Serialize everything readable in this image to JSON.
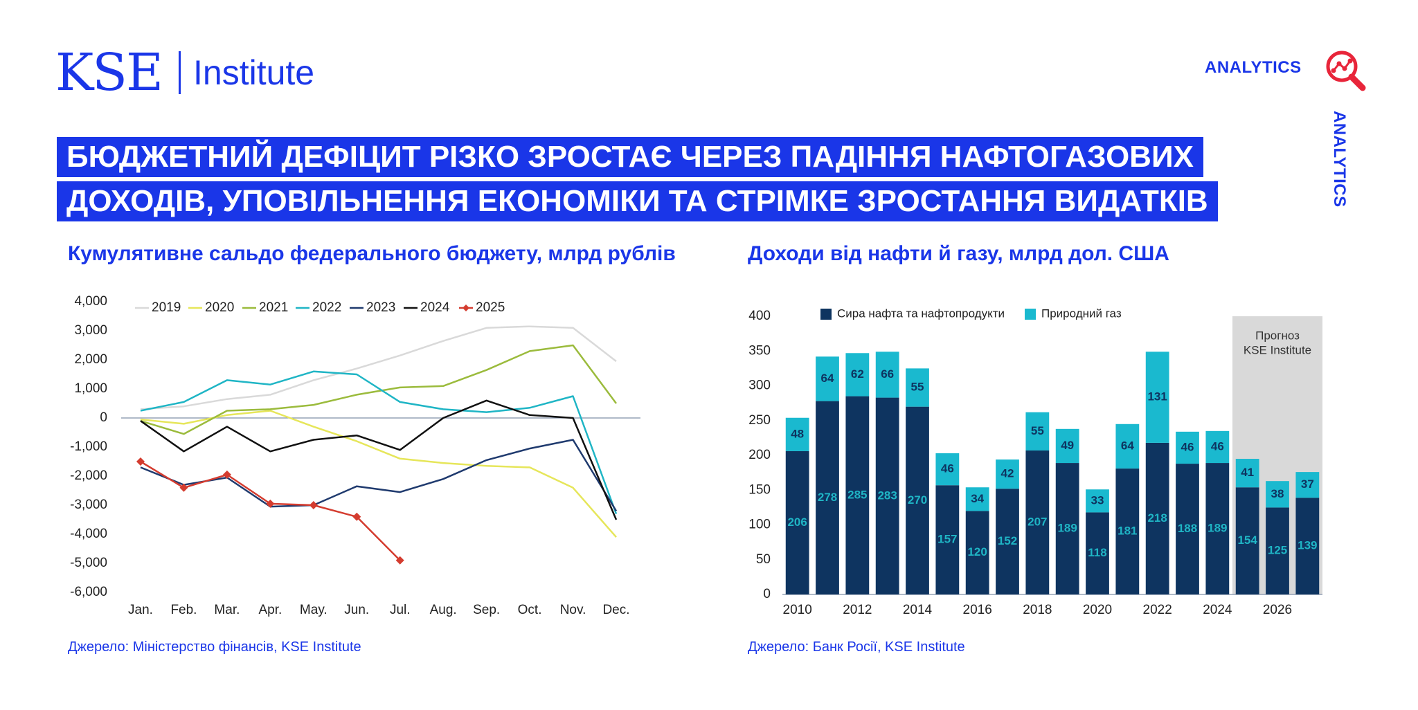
{
  "header": {
    "logo_kse": "KSE",
    "logo_institute": "Institute",
    "analytics_label": "ANALYTICS",
    "analytics_side_label": "ANALYTICS",
    "icon": "analytics-magnifier-icon"
  },
  "headline": {
    "line1": "БЮДЖЕТНИЙ ДЕФІЦИТ РІЗКО ЗРОСТАЄ ЧЕРЕЗ ПАДІННЯ НАФТОГАЗОВИХ",
    "line2": "ДОХОДІВ, УПОВІЛЬНЕННЯ ЕКОНОМІКИ ТА СТРІМКЕ ЗРОСТАННЯ ВИДАТКІВ"
  },
  "colors": {
    "brand_blue": "#1a36e8",
    "red_icon": "#e8253a"
  },
  "chart_data": [
    {
      "type": "line",
      "title": "Кумулятивне сальдо федерального бюджету, млрд рублів",
      "source": "Джерело: Міністерство фінансів, KSE Institute",
      "xlabel": "",
      "ylabel": "",
      "categories": [
        "Jan.",
        "Feb.",
        "Mar.",
        "Apr.",
        "May.",
        "Jun.",
        "Jul.",
        "Aug.",
        "Sep.",
        "Oct.",
        "Nov.",
        "Dec."
      ],
      "ylim": [
        -6000,
        4000
      ],
      "yticks": [
        4000,
        3000,
        2000,
        1000,
        0,
        -1000,
        -2000,
        -3000,
        -4000,
        -5000,
        -6000
      ],
      "ytick_labels": [
        "4,000",
        "3,000",
        "2,000",
        "1,000",
        "0",
        "-1,000",
        "-2,000",
        "-3,000",
        "-4,000",
        "-5,000",
        "-6,000"
      ],
      "legend_position": "top",
      "series": [
        {
          "name": "2019",
          "color": "#d9d9d9",
          "values": [
            300,
            400,
            650,
            800,
            1300,
            1700,
            2150,
            2650,
            3100,
            3150,
            3100,
            1950
          ]
        },
        {
          "name": "2020",
          "color": "#e6e65a",
          "values": [
            -50,
            -200,
            100,
            250,
            -300,
            -800,
            -1400,
            -1550,
            -1650,
            -1700,
            -2400,
            -4100
          ]
        },
        {
          "name": "2021",
          "color": "#9bbb3c",
          "values": [
            -100,
            -550,
            250,
            300,
            450,
            800,
            1050,
            1100,
            1650,
            2300,
            2500,
            500
          ]
        },
        {
          "name": "2022",
          "color": "#1fb5c5",
          "values": [
            250,
            550,
            1300,
            1150,
            1600,
            1500,
            550,
            300,
            200,
            350,
            750,
            -3300
          ]
        },
        {
          "name": "2023",
          "color": "#1f3a6e",
          "values": [
            -1700,
            -2300,
            -2050,
            -3050,
            -3000,
            -2350,
            -2550,
            -2100,
            -1450,
            -1050,
            -750,
            -3200
          ]
        },
        {
          "name": "2024",
          "color": "#111111",
          "values": [
            -100,
            -1150,
            -300,
            -1150,
            -750,
            -600,
            -1100,
            0,
            600,
            100,
            0,
            -3500
          ]
        },
        {
          "name": "2025",
          "color": "#d43c2f",
          "marker": "diamond",
          "values": [
            -1500,
            -2400,
            -1950,
            -2950,
            -3000,
            -3400,
            -4900,
            null,
            null,
            null,
            null,
            null
          ]
        }
      ]
    },
    {
      "type": "bar",
      "stacked": true,
      "title": "Доходи від нафти й газу, млрд дол. США",
      "source": "Джерело: Банк Росії, KSE Institute",
      "xlabel": "",
      "ylabel": "",
      "categories": [
        "2010",
        "2011",
        "2012",
        "2013",
        "2014",
        "2015",
        "2016",
        "2017",
        "2018",
        "2019",
        "2020",
        "2021",
        "2022",
        "2023",
        "2024",
        "2025",
        "2026",
        "2027"
      ],
      "x_tick_labels": [
        "2010",
        "2012",
        "2014",
        "2016",
        "2018",
        "2020",
        "2022",
        "2024",
        "2026"
      ],
      "ylim": [
        0,
        400
      ],
      "yticks": [
        0,
        50,
        100,
        150,
        200,
        250,
        300,
        350,
        400
      ],
      "legend_position": "top",
      "forecast_label_line1": "Прогноз",
      "forecast_label_line2": "KSE Institute",
      "forecast_from": "2025",
      "series": [
        {
          "name": "Сира нафта та нафтопродукти",
          "color": "#0e3460",
          "label_color": "#1fb5c5",
          "values": [
            206,
            278,
            285,
            283,
            270,
            157,
            120,
            152,
            207,
            189,
            118,
            181,
            218,
            188,
            189,
            154,
            125,
            139
          ]
        },
        {
          "name": "Природний газ",
          "color": "#1ab9cf",
          "label_color": "#0e3460",
          "values": [
            48,
            64,
            62,
            66,
            55,
            46,
            34,
            42,
            55,
            49,
            33,
            64,
            131,
            46,
            46,
            41,
            38,
            37
          ]
        }
      ]
    }
  ]
}
